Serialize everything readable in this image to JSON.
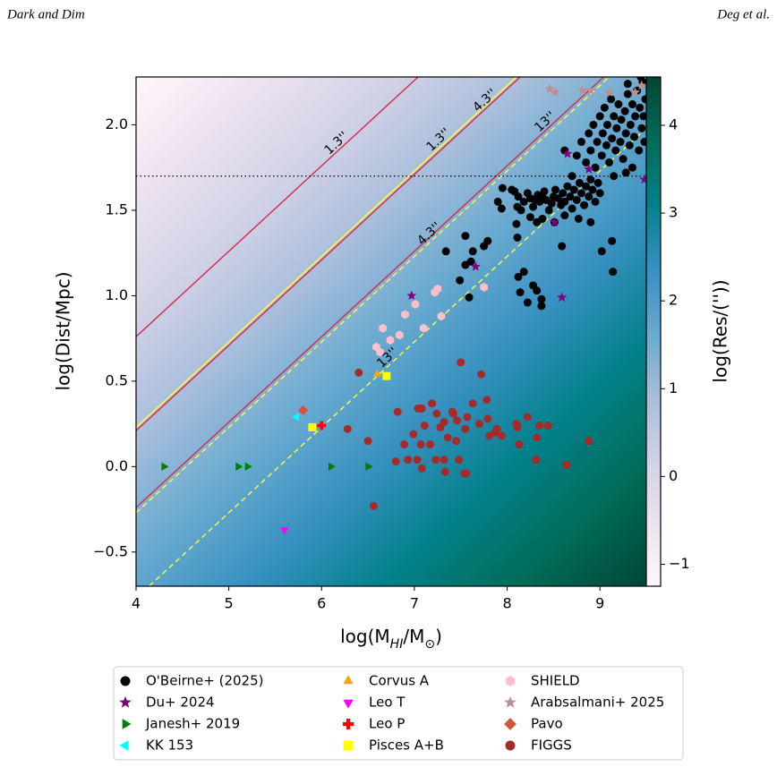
{
  "header": {
    "left": "Dark and Dim",
    "right": "Deg et al."
  },
  "chart_data": {
    "type": "scatter",
    "xlabel": [
      "log(M",
      "HI",
      "/M",
      "⊙",
      ")"
    ],
    "ylabel": "log(Dist/Mpc)",
    "xlim": [
      4,
      9.5
    ],
    "ylim": [
      -0.7,
      2.28
    ],
    "xticks": [
      4,
      5,
      6,
      7,
      8,
      9
    ],
    "yticks": [
      {
        "value": -0.5,
        "label": "−0.5"
      },
      {
        "value": 0,
        "label": "0.0"
      },
      0.5,
      {
        "value": 1,
        "label": "1.0"
      },
      1.5,
      {
        "value": 2,
        "label": "2.0"
      }
    ],
    "colorbar": {
      "label": "log(Res/(''))",
      "clim": [
        -1.25,
        4.55
      ],
      "ticks": [
        {
          "value": -1,
          "label": "−1"
        },
        0,
        1,
        2,
        3,
        4
      ],
      "colormap": [
        "#fff7fb",
        "#ece2f0",
        "#d0d1e6",
        "#a6bddb",
        "#67a9cf",
        "#3690c0",
        "#02818a",
        "#016c59",
        "#014636"
      ]
    },
    "contours": [
      {
        "label": "1.3''",
        "color": "#d6284b",
        "style": "solid",
        "x": [
          4,
          9.5
        ],
        "y": [
          0.76,
          3.51
        ]
      },
      {
        "label": "4.3''",
        "color": "#d6284b",
        "style": "solid",
        "x": [
          4,
          9.5
        ],
        "y": [
          0.21,
          2.96
        ]
      },
      {
        "label": "13''",
        "color": "#d6284b",
        "style": "solid",
        "x": [
          4,
          9.5
        ],
        "y": [
          -0.24,
          2.51
        ]
      },
      {
        "label": "1.3''",
        "color": "#ffff33",
        "style": "solid",
        "x": [
          4,
          9.5
        ],
        "y": [
          0.23,
          2.98
        ]
      },
      {
        "label": "4.3''",
        "color": "#ffff33",
        "style": "dashed",
        "x": [
          4,
          9.5
        ],
        "y": [
          -0.27,
          2.48
        ]
      },
      {
        "label": "13''",
        "color": "#ffff33",
        "style": "dashed",
        "x": [
          4,
          9.5
        ],
        "y": [
          -0.77,
          1.98
        ]
      }
    ],
    "hlines": [
      {
        "y": 1.7,
        "color": "#000000",
        "style": "dotted"
      }
    ],
    "series": [
      {
        "name": "O'Beirne+ (2025)",
        "color": "#000000",
        "marker": "circle",
        "x": [
          7.55,
          7.79,
          7.75,
          7.63,
          7.34,
          7.61,
          7.55,
          7.49,
          7.59,
          8.12,
          8.14,
          8.28,
          8.37,
          8.22,
          8.32,
          8.18,
          8.37,
          7.94,
          8.11,
          8.59,
          9.02,
          9.13,
          9.14,
          8.1,
          8.25,
          8.51,
          8.32,
          8.77,
          8.9,
          8.11,
          8.08,
          8.05,
          8.12,
          8.18,
          8.22,
          8.25,
          8.28,
          8.3,
          8.33,
          8.35,
          8.38,
          8.4,
          8.42,
          8.45,
          8.48,
          8.5,
          8.52,
          8.55,
          8.58,
          8.6,
          8.62,
          8.65,
          8.68,
          8.7,
          8.72,
          8.75,
          8.78,
          8.8,
          8.83,
          8.85,
          8.88,
          8.9,
          8.92,
          8.95,
          8.98,
          9.0,
          7.95,
          7.9,
          8.15,
          8.38,
          8.62,
          8.75,
          8.8,
          8.85,
          8.88,
          8.9,
          8.93,
          8.95,
          8.97,
          9.0,
          9.02,
          9.03,
          9.05,
          9.07,
          9.08,
          9.1,
          9.12,
          9.13,
          9.15,
          9.17,
          9.18,
          9.2,
          9.22,
          9.23,
          9.25,
          9.27,
          9.28,
          9.3,
          9.32,
          9.33,
          9.35,
          9.37,
          9.38,
          9.4,
          9.42,
          9.43,
          9.45,
          9.46,
          9.47,
          9.48,
          9.49,
          9.28,
          9.35,
          9.15,
          8.62,
          8.7,
          9.3,
          9.44
        ],
        "y": [
          1.35,
          1.32,
          1.29,
          1.26,
          1.26,
          1.2,
          1.18,
          1.09,
          0.99,
          1.11,
          1.02,
          1.06,
          0.98,
          0.96,
          1.03,
          1.14,
          0.94,
          1.51,
          1.34,
          1.29,
          1.26,
          1.32,
          1.14,
          1.42,
          1.46,
          1.43,
          1.43,
          1.45,
          1.43,
          1.52,
          1.61,
          1.62,
          1.58,
          1.55,
          1.6,
          1.57,
          1.52,
          1.56,
          1.59,
          1.55,
          1.58,
          1.61,
          1.56,
          1.5,
          1.54,
          1.58,
          1.62,
          1.57,
          1.53,
          1.6,
          1.55,
          1.64,
          1.58,
          1.51,
          1.62,
          1.56,
          1.66,
          1.6,
          1.53,
          1.64,
          1.58,
          1.68,
          1.62,
          1.55,
          1.66,
          1.6,
          1.63,
          1.55,
          1.5,
          1.45,
          1.47,
          1.82,
          1.9,
          1.78,
          1.95,
          1.85,
          2.0,
          1.75,
          1.9,
          2.05,
          1.82,
          1.95,
          2.1,
          1.88,
          2.0,
          1.78,
          2.15,
          1.92,
          2.05,
          1.85,
          1.98,
          2.12,
          1.9,
          2.03,
          1.8,
          2.08,
          1.95,
          2.18,
          1.88,
          2.0,
          2.12,
          1.93,
          2.05,
          2.2,
          1.85,
          2.1,
          1.98,
          2.25,
          2.05,
          1.9,
          2.15,
          1.72,
          1.75,
          1.7,
          1.85,
          1.7,
          2.24,
          2.28
        ]
      },
      {
        "name": "Du+ 2024",
        "color": "#800080",
        "marker": "star",
        "x": [
          6.97,
          7.66,
          8.59,
          8.51,
          8.65,
          8.88,
          9.48
        ],
        "y": [
          1.0,
          1.17,
          0.99,
          1.43,
          1.83,
          1.74,
          1.68
        ]
      },
      {
        "name": "Janesh+ 2019",
        "color": "#008000",
        "marker": "triangle-right",
        "x": [
          4.3,
          5.1,
          5.2,
          6.1,
          6.5
        ],
        "y": [
          0,
          0,
          0,
          0,
          0
        ]
      },
      {
        "name": "KK 153",
        "color": "#00ffff",
        "marker": "triangle-left",
        "x": [
          5.73
        ],
        "y": [
          0.29
        ]
      },
      {
        "name": "Corvus A",
        "color": "#ffa500",
        "marker": "triangle-up",
        "x": [
          6.6
        ],
        "y": [
          0.54
        ]
      },
      {
        "name": "Leo T",
        "color": "#ff00ff",
        "marker": "triangle-down",
        "x": [
          5.6
        ],
        "y": [
          -0.37
        ]
      },
      {
        "name": "Leo P",
        "color": "#ff0000",
        "marker": "plus",
        "x": [
          6.0
        ],
        "y": [
          0.24
        ]
      },
      {
        "name": "Pisces A+B",
        "color": "#ffff00",
        "marker": "square",
        "x": [
          5.9,
          6.7
        ],
        "y": [
          0.23,
          0.53
        ]
      },
      {
        "name": "SHIELD",
        "color": "#ffc0cb",
        "marker": "hexagon",
        "x": [
          6.66,
          6.74,
          6.63,
          6.84,
          6.9,
          7.1,
          7.01,
          7.25,
          7.29,
          7.22,
          7.75,
          6.59
        ],
        "y": [
          0.81,
          0.74,
          0.67,
          0.77,
          0.89,
          0.81,
          0.95,
          1.04,
          0.88,
          1.02,
          1.05,
          0.7
        ]
      },
      {
        "name": "Arabsalmani+ 2025",
        "color": "#bc8f8f",
        "marker": "star",
        "x": [
          8.46,
          8.52,
          8.81,
          8.9,
          9.1,
          9.38,
          9.45
        ],
        "y": [
          2.21,
          2.19,
          2.2,
          2.2,
          2.19,
          2.19,
          2.23
        ]
      },
      {
        "name": "Pavo",
        "color": "#d2553a",
        "marker": "diamond",
        "x": [
          5.8
        ],
        "y": [
          0.33
        ]
      },
      {
        "name": "FIGGS",
        "color": "#a52a2a",
        "marker": "circle",
        "x": [
          6.4,
          7.5,
          7.72,
          7.78,
          7.79,
          7.63,
          7.19,
          6.82,
          7.04,
          7.08,
          7.24,
          7.42,
          7.32,
          7.46,
          7.57,
          7.7,
          7.94,
          7.81,
          7.87,
          8.1,
          8.11,
          8.22,
          8.35,
          8.32,
          8.44,
          8.13,
          7.55,
          7.36,
          7.28,
          7.11,
          7.17,
          6.99,
          6.89,
          7.07,
          7.03,
          6.93,
          6.8,
          7.23,
          7.32,
          7.48,
          7.54,
          7.33,
          7.08,
          7.45,
          7.89,
          6.28,
          6.5,
          6.56,
          8.31,
          8.64,
          8.88,
          7.56,
          7.41
        ],
        "y": [
          0.55,
          0.61,
          0.54,
          0.39,
          0.28,
          0.37,
          0.37,
          0.32,
          0.34,
          0.34,
          0.31,
          0.31,
          0.26,
          0.27,
          0.29,
          0.25,
          0.18,
          0.18,
          0.2,
          0.25,
          0.23,
          0.29,
          0.24,
          0.17,
          0.24,
          0.13,
          0.22,
          0.17,
          0.23,
          0.24,
          0.13,
          0.19,
          0.13,
          0.13,
          0.04,
          0.04,
          0.03,
          0.04,
          0.04,
          0.04,
          -0.04,
          -0.03,
          -0.01,
          0.15,
          0.22,
          0.22,
          0.15,
          -0.23,
          0.04,
          0.01,
          0.15,
          -0.04,
          0.32
        ]
      }
    ]
  }
}
